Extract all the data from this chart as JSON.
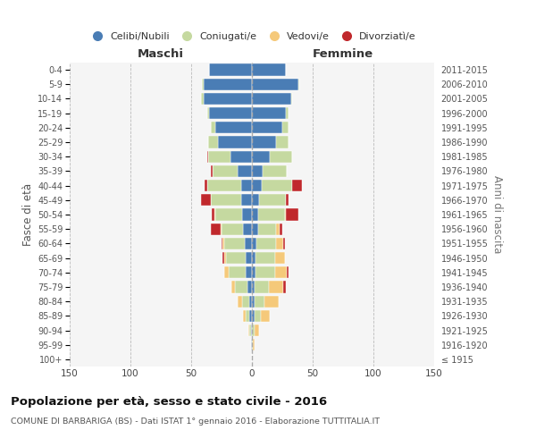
{
  "age_groups": [
    "100+",
    "95-99",
    "90-94",
    "85-89",
    "80-84",
    "75-79",
    "70-74",
    "65-69",
    "60-64",
    "55-59",
    "50-54",
    "45-49",
    "40-44",
    "35-39",
    "30-34",
    "25-29",
    "20-24",
    "15-19",
    "10-14",
    "5-9",
    "0-4"
  ],
  "birth_years": [
    "≤ 1915",
    "1916-1920",
    "1921-1925",
    "1926-1930",
    "1931-1935",
    "1936-1940",
    "1941-1945",
    "1946-1950",
    "1951-1955",
    "1956-1960",
    "1961-1965",
    "1966-1970",
    "1971-1975",
    "1976-1980",
    "1981-1985",
    "1986-1990",
    "1991-1995",
    "1996-2000",
    "2001-2005",
    "2006-2010",
    "2011-2015"
  ],
  "colors": {
    "celibi": "#4a7db5",
    "coniugati": "#c5d9a0",
    "vedovi": "#f5c97a",
    "divorziati": "#c0282c"
  },
  "maschi": {
    "celibi": [
      0,
      1,
      1,
      2,
      2,
      4,
      5,
      5,
      6,
      7,
      8,
      9,
      9,
      12,
      18,
      28,
      30,
      35,
      40,
      40,
      35
    ],
    "coniugati": [
      0,
      0,
      1,
      3,
      6,
      10,
      14,
      16,
      17,
      18,
      22,
      25,
      28,
      20,
      18,
      8,
      4,
      2,
      2,
      1,
      0
    ],
    "vedovi": [
      0,
      0,
      1,
      2,
      4,
      3,
      4,
      2,
      1,
      1,
      1,
      0,
      0,
      0,
      0,
      0,
      0,
      0,
      0,
      0,
      0
    ],
    "divorziati": [
      0,
      0,
      0,
      0,
      0,
      0,
      0,
      1,
      1,
      8,
      2,
      8,
      2,
      2,
      1,
      0,
      0,
      0,
      0,
      0,
      0
    ]
  },
  "femmine": {
    "celibi": [
      0,
      0,
      0,
      2,
      2,
      2,
      3,
      3,
      4,
      5,
      5,
      6,
      8,
      9,
      15,
      20,
      25,
      28,
      32,
      38,
      28
    ],
    "coniugati": [
      0,
      1,
      2,
      5,
      8,
      12,
      16,
      16,
      16,
      15,
      22,
      22,
      25,
      20,
      18,
      10,
      5,
      2,
      1,
      1,
      0
    ],
    "vedovi": [
      0,
      1,
      4,
      8,
      12,
      12,
      10,
      8,
      6,
      3,
      1,
      0,
      0,
      0,
      0,
      0,
      0,
      0,
      0,
      0,
      0
    ],
    "divorziati": [
      0,
      0,
      0,
      0,
      0,
      2,
      1,
      0,
      1,
      2,
      10,
      2,
      8,
      0,
      0,
      0,
      0,
      0,
      0,
      0,
      0
    ]
  },
  "xlim": 150,
  "title": "Popolazione per età, sesso e stato civile - 2016",
  "subtitle": "COMUNE DI BARBARIGA (BS) - Dati ISTAT 1° gennaio 2016 - Elaborazione TUTTITALIA.IT",
  "ylabel": "Fasce di età",
  "ylabel_right": "Anni di nascita",
  "maschi_label": "Maschi",
  "femmine_label": "Femmine",
  "legend": [
    "Celibi/Nubili",
    "Coniugati/e",
    "Vedovi/e",
    "Divorziatì/e"
  ],
  "bg_color": "#f5f5f5"
}
